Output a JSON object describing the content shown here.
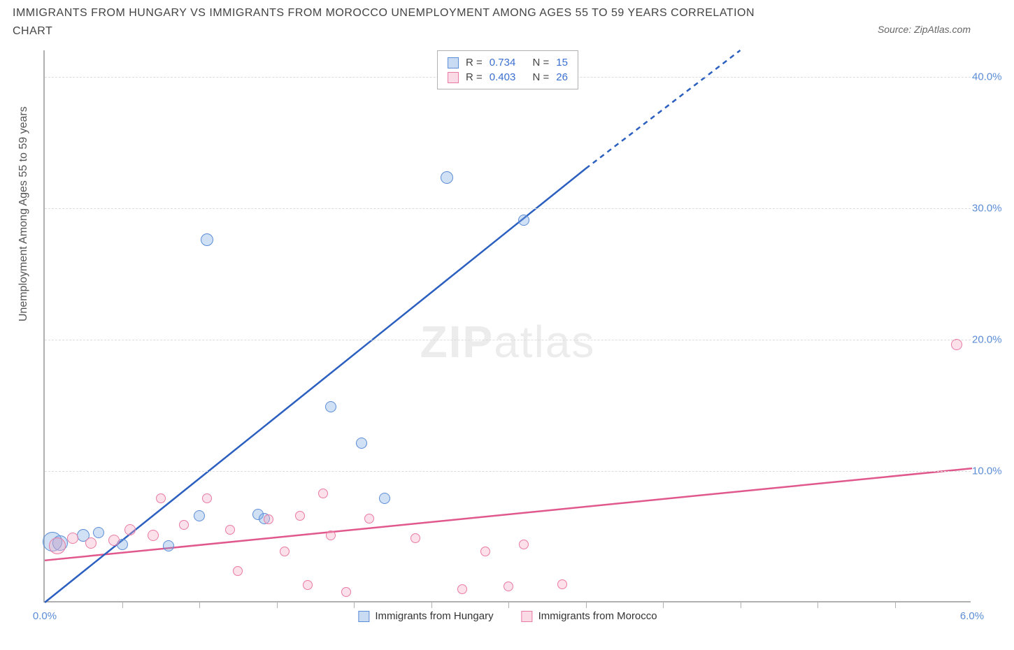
{
  "title": "IMMIGRANTS FROM HUNGARY VS IMMIGRANTS FROM MOROCCO UNEMPLOYMENT AMONG AGES 55 TO 59 YEARS CORRELATION CHART",
  "source_label": "Source: ZipAtlas.com",
  "yaxis_label": "Unemployment Among Ages 55 to 59 years",
  "watermark_a": "ZIP",
  "watermark_b": "atlas",
  "chart": {
    "type": "scatter",
    "xlim": [
      0.0,
      6.0
    ],
    "ylim": [
      0.0,
      42.0
    ],
    "xtick_labels": [
      "0.0%",
      "6.0%"
    ],
    "xtick_positions": [
      0.0,
      6.0
    ],
    "xtick_minor": [
      0.5,
      1.0,
      1.5,
      2.0,
      2.5,
      3.0,
      3.5,
      4.0,
      4.5,
      5.0,
      5.5
    ],
    "ytick_labels": [
      "10.0%",
      "20.0%",
      "30.0%",
      "40.0%"
    ],
    "ytick_positions": [
      10.0,
      20.0,
      30.0,
      40.0
    ],
    "background_color": "#ffffff",
    "grid_color": "#dcdcdc",
    "label_color": "#5b8dd6",
    "series": [
      {
        "name": "hungary",
        "label": "Immigrants from Hungary",
        "color_fill": "rgba(120,165,225,0.35)",
        "color_stroke": "#5b8dd6",
        "trend_color": "#2b5fc0",
        "R_label": "R =",
        "R": "0.734",
        "N_label": "N =",
        "N": "15",
        "trend_start": [
          0.0,
          0.0
        ],
        "trend_solid_end": [
          3.5,
          33.0
        ],
        "trend_dash_end": [
          4.5,
          42.0
        ],
        "points": [
          {
            "x": 0.05,
            "y": 4.5,
            "r": 14
          },
          {
            "x": 0.1,
            "y": 4.4,
            "r": 11
          },
          {
            "x": 0.25,
            "y": 5.0,
            "r": 9
          },
          {
            "x": 0.35,
            "y": 5.2,
            "r": 8
          },
          {
            "x": 0.5,
            "y": 4.3,
            "r": 8
          },
          {
            "x": 0.8,
            "y": 4.2,
            "r": 8
          },
          {
            "x": 1.0,
            "y": 6.5,
            "r": 8
          },
          {
            "x": 1.05,
            "y": 27.5,
            "r": 9
          },
          {
            "x": 1.38,
            "y": 6.6,
            "r": 8
          },
          {
            "x": 1.42,
            "y": 6.3,
            "r": 8
          },
          {
            "x": 1.85,
            "y": 14.8,
            "r": 8
          },
          {
            "x": 2.05,
            "y": 12.0,
            "r": 8
          },
          {
            "x": 2.2,
            "y": 7.8,
            "r": 8
          },
          {
            "x": 2.6,
            "y": 32.2,
            "r": 9
          },
          {
            "x": 3.1,
            "y": 29.0,
            "r": 8
          }
        ]
      },
      {
        "name": "morocco",
        "label": "Immigrants from Morocco",
        "color_fill": "rgba(245,170,195,0.35)",
        "color_stroke": "#e87aa4",
        "trend_color": "#e0588c",
        "R_label": "R =",
        "R": "0.403",
        "N_label": "N =",
        "N": "26",
        "trend_start": [
          0.0,
          3.2
        ],
        "trend_solid_end": [
          6.0,
          10.2
        ],
        "points": [
          {
            "x": 0.08,
            "y": 4.2,
            "r": 12
          },
          {
            "x": 0.18,
            "y": 4.8,
            "r": 8
          },
          {
            "x": 0.3,
            "y": 4.4,
            "r": 8
          },
          {
            "x": 0.45,
            "y": 4.6,
            "r": 8
          },
          {
            "x": 0.55,
            "y": 5.4,
            "r": 8
          },
          {
            "x": 0.7,
            "y": 5.0,
            "r": 8
          },
          {
            "x": 0.75,
            "y": 7.8,
            "r": 7
          },
          {
            "x": 0.9,
            "y": 5.8,
            "r": 7
          },
          {
            "x": 1.05,
            "y": 7.8,
            "r": 7
          },
          {
            "x": 1.2,
            "y": 5.4,
            "r": 7
          },
          {
            "x": 1.25,
            "y": 2.3,
            "r": 7
          },
          {
            "x": 1.45,
            "y": 6.2,
            "r": 7
          },
          {
            "x": 1.55,
            "y": 3.8,
            "r": 7
          },
          {
            "x": 1.65,
            "y": 6.5,
            "r": 7
          },
          {
            "x": 1.7,
            "y": 1.2,
            "r": 7
          },
          {
            "x": 1.8,
            "y": 8.2,
            "r": 7
          },
          {
            "x": 1.85,
            "y": 5.0,
            "r": 7
          },
          {
            "x": 1.95,
            "y": 0.7,
            "r": 7
          },
          {
            "x": 2.1,
            "y": 6.3,
            "r": 7
          },
          {
            "x": 2.4,
            "y": 4.8,
            "r": 7
          },
          {
            "x": 2.7,
            "y": 0.9,
            "r": 7
          },
          {
            "x": 2.85,
            "y": 3.8,
            "r": 7
          },
          {
            "x": 3.0,
            "y": 1.1,
            "r": 7
          },
          {
            "x": 3.1,
            "y": 4.3,
            "r": 7
          },
          {
            "x": 3.35,
            "y": 1.3,
            "r": 7
          },
          {
            "x": 5.9,
            "y": 19.5,
            "r": 8
          }
        ]
      }
    ]
  }
}
